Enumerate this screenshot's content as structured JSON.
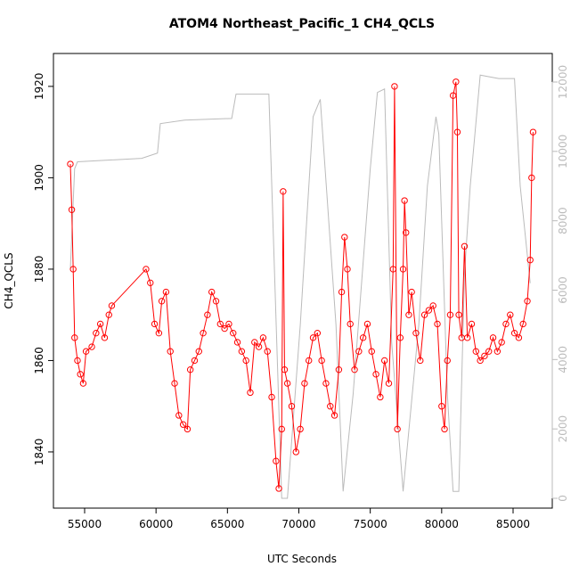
{
  "chart_data": {
    "type": "line",
    "title": "ATOM4 Northeast_Pacific_1 CH4_QCLS",
    "x_label": "UTC Seconds",
    "y_label": "CH4_QCLS",
    "xlim": [
      52817,
      87745
    ],
    "xticks": [
      55000,
      60000,
      65000,
      70000,
      75000,
      80000,
      85000
    ],
    "ylim": [
      1827.7,
      1927.2
    ],
    "yticks": [
      1840,
      1860,
      1880,
      1900,
      1920
    ],
    "y2lim": [
      -283,
      12822
    ],
    "y2ticks": [
      0,
      2000,
      4000,
      6000,
      8000,
      10000,
      12000
    ],
    "series": [
      {
        "color": "#ff0000",
        "markers": true,
        "x": [
          54000,
          54100,
          54200,
          54300,
          54500,
          54700,
          54900,
          55100,
          55500,
          55800,
          56100,
          56400,
          56700,
          56900,
          59300,
          59600,
          59900,
          60200,
          60400,
          60700,
          61000,
          61300,
          61600,
          61900,
          62200,
          62400,
          62700,
          63000,
          63300,
          63600,
          63900,
          64200,
          64500,
          64800,
          65100,
          65400,
          65700,
          66000,
          66300,
          66600,
          66900,
          67200,
          67500,
          67800,
          68100,
          68400,
          68600,
          68800,
          68900,
          69000,
          69200,
          69500,
          69800,
          70100,
          70400,
          70700,
          71000,
          71300,
          71600,
          71900,
          72200,
          72500,
          72800,
          73000,
          73200,
          73400,
          73600,
          73900,
          74200,
          74500,
          74800,
          75100,
          75400,
          75700,
          76000,
          76300,
          76600,
          76700,
          76900,
          77100,
          77300,
          77400,
          77500,
          77700,
          77900,
          78200,
          78500,
          78800,
          79100,
          79400,
          79700,
          80000,
          80200,
          80400,
          80600,
          80800,
          81000,
          81100,
          81200,
          81400,
          81600,
          81800,
          82100,
          82400,
          82700,
          83000,
          83300,
          83600,
          83900,
          84200,
          84500,
          84800,
          85100,
          85400,
          85700,
          86000,
          86200,
          86300,
          86400
        ],
        "values": [
          1903,
          1893,
          1880,
          1865,
          1860,
          1857,
          1855,
          1862,
          1863,
          1866,
          1868,
          1865,
          1870,
          1872,
          1880,
          1877,
          1868,
          1866,
          1873,
          1875,
          1862,
          1855,
          1848,
          1846,
          1845,
          1858,
          1860,
          1862,
          1866,
          1870,
          1875,
          1873,
          1868,
          1867,
          1868,
          1866,
          1864,
          1862,
          1860,
          1853,
          1864,
          1863,
          1865,
          1862,
          1852,
          1838,
          1832,
          1845,
          1897,
          1858,
          1855,
          1850,
          1840,
          1845,
          1855,
          1860,
          1865,
          1866,
          1860,
          1855,
          1850,
          1848,
          1858,
          1875,
          1887,
          1880,
          1868,
          1858,
          1862,
          1865,
          1868,
          1862,
          1857,
          1852,
          1860,
          1855,
          1880,
          1920,
          1845,
          1865,
          1880,
          1895,
          1888,
          1870,
          1875,
          1866,
          1860,
          1870,
          1871,
          1872,
          1868,
          1850,
          1845,
          1860,
          1870,
          1918,
          1921,
          1910,
          1870,
          1865,
          1885,
          1865,
          1868,
          1862,
          1860,
          1861,
          1862,
          1865,
          1862,
          1864,
          1868,
          1870,
          1866,
          1865,
          1868,
          1873,
          1882,
          1900,
          1910
        ]
      },
      {
        "color": "#bbbbbb",
        "axis": "y2",
        "markers": false,
        "x": [
          54000,
          54300,
          54500,
          59000,
          60100,
          60300,
          62000,
          65300,
          65600,
          67300,
          67900,
          68800,
          69200,
          70100,
          71000,
          71500,
          72600,
          73100,
          73800,
          75000,
          75500,
          76000,
          76500,
          77300,
          78400,
          79000,
          79600,
          79800,
          80400,
          80800,
          81200,
          81600,
          82000,
          82700,
          84000,
          85100,
          85500,
          86200
        ],
        "values": [
          6600,
          9500,
          9700,
          9800,
          9950,
          10800,
          10900,
          10950,
          11650,
          11650,
          11650,
          0,
          0,
          5000,
          11000,
          11500,
          5000,
          200,
          3000,
          9500,
          11700,
          11800,
          4500,
          200,
          5000,
          9000,
          11000,
          10500,
          3000,
          200,
          200,
          6500,
          9000,
          12200,
          12100,
          12100,
          9000,
          6200
        ]
      }
    ]
  }
}
